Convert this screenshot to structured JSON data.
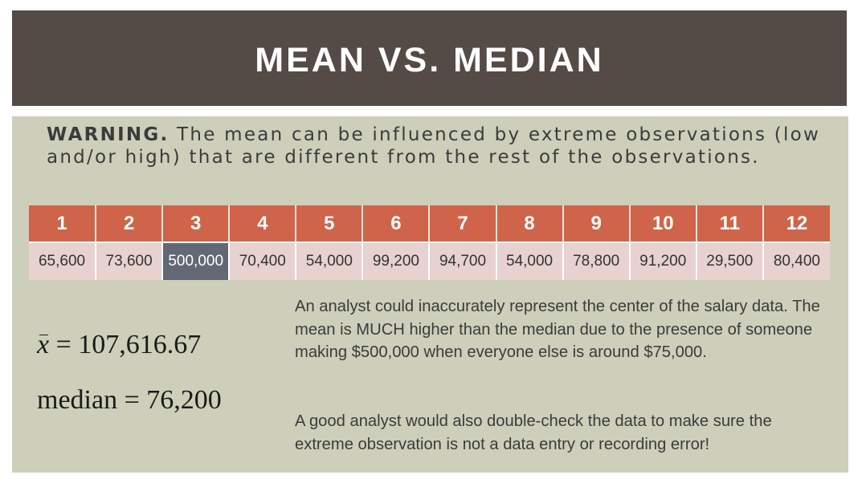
{
  "title": "MEAN VS. MEDIAN",
  "warning": {
    "lead": "WARNING.",
    "text": "The mean can be influenced by extreme observations (low and/or high) that are different from the rest of the observations."
  },
  "table": {
    "headers": [
      "1",
      "2",
      "3",
      "4",
      "5",
      "6",
      "7",
      "8",
      "9",
      "10",
      "11",
      "12"
    ],
    "values": [
      "65,600",
      "73,600",
      "500,000",
      "70,400",
      "54,000",
      "99,200",
      "94,700",
      "54,000",
      "78,800",
      "91,200",
      "29,500",
      "80,400"
    ],
    "highlight_index": 2
  },
  "formulas": {
    "mean_symbol": "x",
    "mean_value": "107,616.67",
    "median_label": "median",
    "median_value": "76,200"
  },
  "paragraphs": [
    "An analyst could inaccurately represent the center of the salary data. The mean is MUCH higher than the median due to the presence of someone making $500,000 when everyone else is around $75,000.",
    "A good analyst would also double-check the data to make sure the extreme observation is not a data entry or recording error!"
  ],
  "colors": {
    "title_bar": "#544a46",
    "panel": "#cdcfbb",
    "header_cells": "#d0644a",
    "value_cells": "#e7d2d0",
    "highlight_cell": "#636874"
  }
}
